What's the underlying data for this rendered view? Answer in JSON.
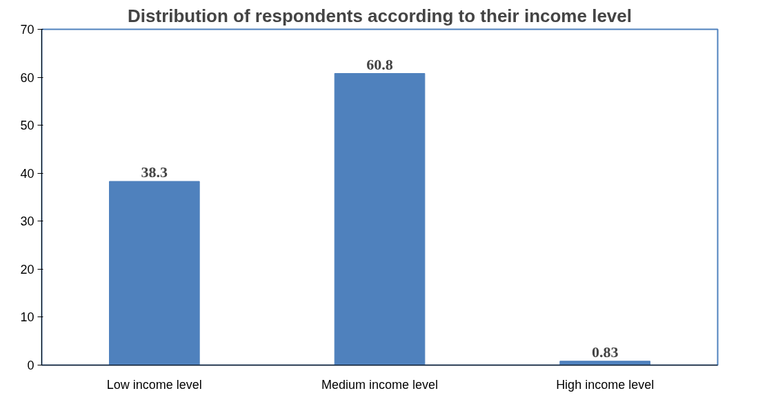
{
  "chart_data": {
    "type": "bar",
    "title": "Distribution of respondents according to their income level",
    "categories": [
      "Low income level",
      "Medium income level",
      "High income level"
    ],
    "values": [
      38.3,
      60.8,
      0.83
    ],
    "color": "#4f81bd",
    "ylim": [
      0,
      70
    ],
    "yticks": [
      0,
      10,
      20,
      30,
      40,
      50,
      60,
      70
    ],
    "grid": false,
    "data_labels": true
  }
}
